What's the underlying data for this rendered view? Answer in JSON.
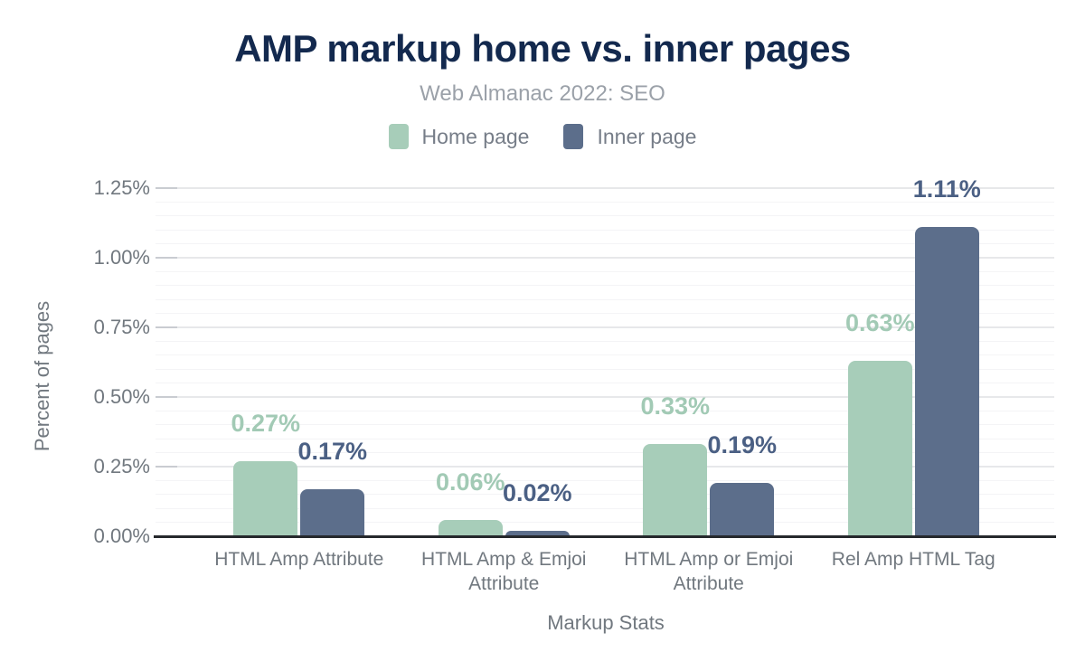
{
  "header": {
    "title": "AMP markup home vs. inner pages",
    "subtitle": "Web Almanac 2022: SEO"
  },
  "colors": {
    "home_bar": "#a7cdb9",
    "home_label": "#a2cab5",
    "inner_bar": "#5c6e8b",
    "inner_label": "#4b6084",
    "title": "#13294e",
    "subtitle": "#9ba1a9",
    "axis_text": "#71787f",
    "baseline": "#25282c",
    "grid_major": "#e7e8ea",
    "grid_minor": "#f4f4f6"
  },
  "chart_data": {
    "type": "bar",
    "title": "AMP markup home vs. inner pages",
    "subtitle": "Web Almanac 2022: SEO",
    "categories": [
      "HTML Amp Attribute",
      "HTML Amp & Emjoi Attribute",
      "HTML Amp or Emjoi Attribute",
      "Rel Amp HTML Tag"
    ],
    "series": [
      {
        "name": "Home page",
        "values": [
          0.27,
          0.06,
          0.33,
          0.63
        ],
        "labels": [
          "0.27%",
          "0.06%",
          "0.33%",
          "0.63%"
        ]
      },
      {
        "name": "Inner page",
        "values": [
          0.17,
          0.02,
          0.19,
          1.11
        ],
        "labels": [
          "0.17%",
          "0.02%",
          "0.19%",
          "1.11%"
        ]
      }
    ],
    "xlabel": "Markup Stats",
    "ylabel": "Percent of pages",
    "ylim": [
      0,
      1.25
    ],
    "yticks": [
      0,
      0.25,
      0.5,
      0.75,
      1,
      1.25
    ],
    "ytick_labels": [
      "0.00%",
      "0.25%",
      "0.50%",
      "0.75%",
      "1.00%",
      "1.25%"
    ],
    "grid": "horizontal, minor every 0.05, major every 0.25",
    "legend_position": "top-center"
  }
}
